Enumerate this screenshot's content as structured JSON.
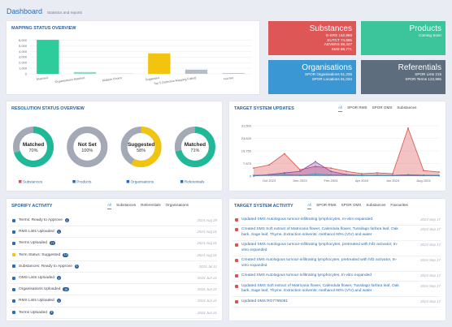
{
  "header": {
    "title": "Dashboard",
    "subtitle": "Statistics and reports"
  },
  "chart_data": [
    {
      "type": "bar",
      "title": "MAPPING STATUS OVERVIEW",
      "categories": [
        "Matched",
        "Organisations Matched",
        "Multiple Choice",
        "Suggested",
        "Top 5 (Selection Mapping Failed)",
        "Not Set"
      ],
      "values": [
        6050,
        320,
        60,
        3650,
        750,
        120
      ],
      "colors": [
        "#2ecc9a",
        "#8fd9c8",
        "#c8cdd5",
        "#f2c40f",
        "#b7bdc7",
        "#b7bdc7"
      ],
      "ylim": [
        0,
        6500
      ],
      "yticks": [
        0,
        {
          "value": 1000,
          "label": "1,000"
        },
        {
          "value": 2000,
          "label": "2,000"
        },
        {
          "value": 3000,
          "label": "3,000"
        },
        {
          "value": 4000,
          "label": "4,000"
        },
        {
          "value": 5000,
          "label": "5,000"
        },
        {
          "value": 6000,
          "label": "6,000"
        }
      ],
      "grid": true
    },
    {
      "type": "donut",
      "title": "RESOLUTION STATUS OVERVIEW",
      "categories": [
        "Substances",
        "Products",
        "Organisations",
        "Referentials"
      ],
      "statuses": [
        "Matched",
        "Not Set",
        "Suggested",
        "Matched"
      ],
      "values": [
        70,
        100,
        58,
        71
      ],
      "value_labels": [
        "70%",
        "100%",
        "58%",
        "71%"
      ],
      "colors": [
        "#1fb99a",
        "#a3aab5",
        "#f1c40f",
        "#1fb99a"
      ],
      "track_color": "#a3aab5"
    },
    {
      "type": "area",
      "title": "TARGET SYSTEM UPDATES",
      "tabs": [
        "All",
        "SPOR RMS",
        "SPOR OMS",
        "Substances"
      ],
      "categories": [
        null,
        "Oct 2023",
        null,
        "Dec 2023",
        null,
        "Feb 2024",
        null,
        "Apr 2024",
        null,
        "Jun 2024",
        null,
        "Aug 2024",
        null
      ],
      "series": [
        {
          "color": "#d9534f",
          "values": [
            5000,
            7000,
            14000,
            4000,
            6000,
            5000,
            3000,
            1500,
            2000,
            1500,
            30000,
            3500,
            2500
          ]
        },
        {
          "color": "#8e44ad",
          "values": [
            0,
            1000,
            2000,
            3000,
            9000,
            3000,
            1000,
            500,
            500,
            300,
            500,
            300,
            200
          ]
        },
        {
          "color": "#17a2b8",
          "values": [
            500,
            800,
            1000,
            600,
            1200,
            800,
            700,
            400,
            600,
            500,
            900,
            600,
            500
          ]
        }
      ],
      "ylim": [
        0,
        31500
      ],
      "yticks": [
        0,
        {
          "value": 7875,
          "label": "7,875"
        },
        {
          "value": 15750,
          "label": "15,750"
        },
        {
          "value": 23625,
          "label": "23,625"
        },
        {
          "value": 31500,
          "label": "31,500"
        }
      ],
      "grid": true
    }
  ],
  "tiles": [
    {
      "title": "Substances",
      "lines": [
        "G-SRS 152,969",
        "EUTCT 74,665",
        "ADVERS 69,437",
        "SMS 98,771"
      ],
      "color": "#dd5757"
    },
    {
      "title": "Products",
      "lines": [
        "Coming Soon"
      ],
      "color": "#3cc49a"
    },
    {
      "title": "Organisations",
      "lines": [
        "SPOR Organisations 51,236",
        "SPOR Locations 91,034"
      ],
      "color": "#3b97d3"
    },
    {
      "title": "Referentials",
      "lines": [
        "SPOR Lists 215",
        "SPOR Terms 122,965"
      ],
      "color": "#5d6d7e"
    }
  ],
  "sporify": {
    "title": "SPORIFY ACTIVITY",
    "tabs": [
      "All",
      "Substances",
      "Referentials",
      "Organisations"
    ],
    "items": [
      {
        "text": "Terms: Ready to Approve",
        "count": 1,
        "date": "2024 Aug 29"
      },
      {
        "text": "RMS Lists Uploaded",
        "count": 1,
        "date": "2024 Aug 01"
      },
      {
        "text": "Terms Uploaded",
        "count": 77,
        "date": "2024 Aug 01"
      },
      {
        "text": "Term Status: Suggested",
        "count": 14,
        "date": "2024 Aug 01"
      },
      {
        "text": "Substances: Ready to Approve",
        "count": 1,
        "date": "2024 Jul 11"
      },
      {
        "text": "OMS Lists Uploaded",
        "count": 1,
        "date": "2024 Jun 21"
      },
      {
        "text": "Organisations Uploaded",
        "count": 19,
        "date": "2024 Jun 21"
      },
      {
        "text": "RMS Lists Uploaded",
        "count": 1,
        "date": "2024 Jun 21"
      },
      {
        "text": "Terms Uploaded",
        "count": 4,
        "date": "2024 Jun 21"
      }
    ]
  },
  "activity": {
    "title": "TARGET SYSTEM ACTIVITY",
    "tabs": [
      "All",
      "SPOR RMS",
      "SPOR OMS",
      "Substances",
      "Favourites"
    ],
    "items": [
      {
        "text": "Updated SMS Autologous tumour-infiltrating lymphocytes, In-vitro expanded",
        "date": "2024 Sep 17"
      },
      {
        "text": "Created SMS Soft extract of Matricaria flower, Calendula flower, Tussilago farfara leaf, Oak bark, Sage leaf, Thyme. Extraction solvents: methanol 90% (V/V) and water",
        "date": "2024 Sep 17"
      },
      {
        "text": "Updated SMS Autologous tumour-infiltrating lymphocytes, pretreated with hif2 activator, In-vitro expanded",
        "date": "2024 Sep 17"
      },
      {
        "text": "Created SMS Autologous tumour-infiltrating lymphocytes, pretreated with hif2 activator, In-vitro expanded",
        "date": "2024 Sep 17"
      },
      {
        "text": "Created SMS Autologous tumour-infiltrating lymphocytes, In-vitro expanded",
        "date": "2024 Sep 17"
      },
      {
        "text": "Updated SMS Soft extract of Matricaria flower, Calendula flower, Tussilago farfara leaf, Oak bark, Sage leaf, Thyme. Extraction solvents: methanol 90% (V/V) and water",
        "date": "2024 Sep 17"
      },
      {
        "text": "Updated SMS RO7795081",
        "date": "2024 Sep 17"
      }
    ]
  }
}
